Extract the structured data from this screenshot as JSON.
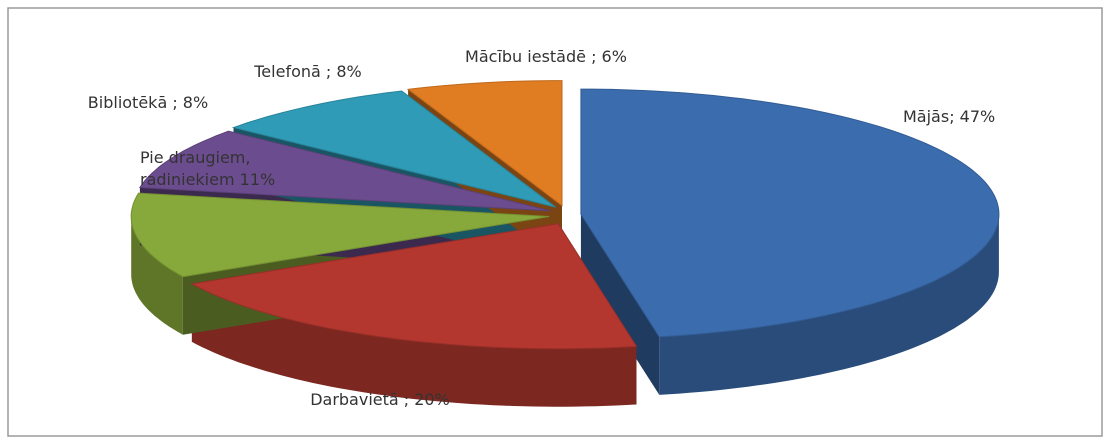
{
  "chart_data": {
    "type": "pie3d",
    "values": [
      47,
      20,
      11,
      8,
      8,
      6
    ],
    "value_labels": [
      "Mājās; 47%",
      "Darbavietā ; 20%",
      "Pie draugiem,\nradiniekiem 11%",
      "Bibliotēkā ; 8%",
      "Telefonā ; 8%",
      "Mācību iestādē ; 6%"
    ],
    "colors": [
      "#3b6cae",
      "#b3372f",
      "#87a83b",
      "#6b4c8e",
      "#2f9bb6",
      "#e07c22"
    ]
  }
}
